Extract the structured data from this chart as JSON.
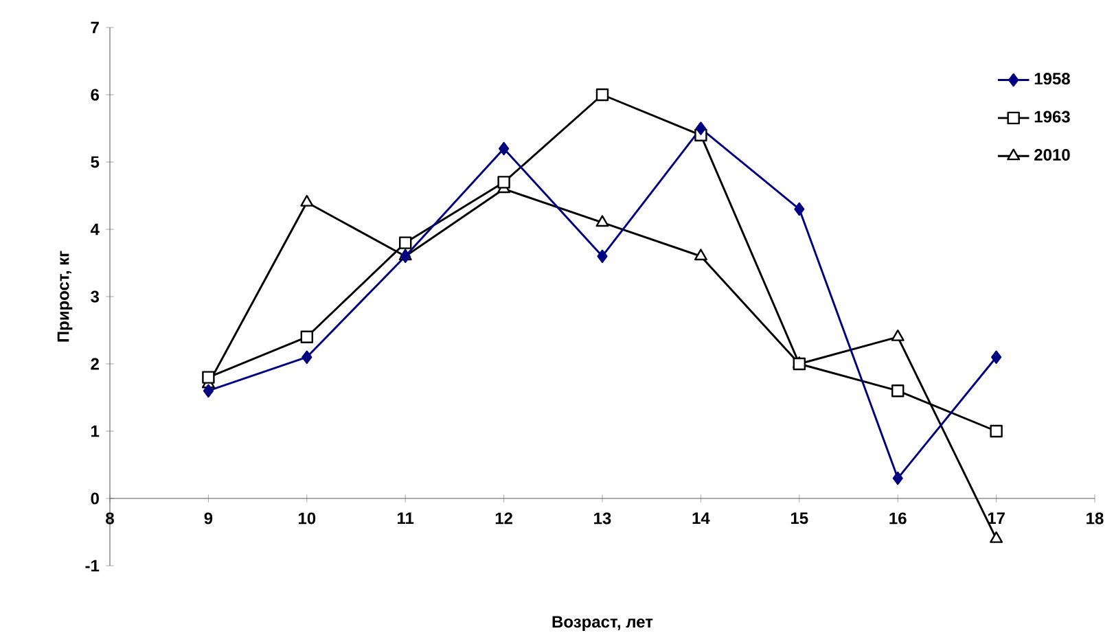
{
  "chart_data": {
    "type": "line",
    "xlabel": "Возраст, лет",
    "ylabel": "Прирост, кг",
    "x": [
      9,
      10,
      11,
      12,
      13,
      14,
      15,
      16,
      17
    ],
    "series": [
      {
        "name": "1958",
        "color": "#000080",
        "marker": "diamond",
        "values": [
          1.6,
          2.1,
          3.6,
          5.2,
          3.6,
          5.5,
          4.3,
          0.3,
          2.1
        ]
      },
      {
        "name": "1963",
        "color": "#000000",
        "marker": "square",
        "values": [
          1.8,
          2.4,
          3.8,
          4.7,
          6.0,
          5.4,
          2.0,
          1.6,
          1.0
        ]
      },
      {
        "name": "2010",
        "color": "#000000",
        "marker": "triangle",
        "values": [
          1.7,
          4.4,
          3.6,
          4.6,
          4.1,
          3.6,
          2.0,
          2.4,
          -0.6
        ]
      }
    ],
    "xlim": [
      8,
      18
    ],
    "xticks": [
      8,
      9,
      10,
      11,
      12,
      13,
      14,
      15,
      16,
      17,
      18
    ],
    "ylim": [
      -1,
      7
    ],
    "yticks": [
      -1,
      0,
      1,
      2,
      3,
      4,
      5,
      6,
      7
    ],
    "grid": false,
    "legend": "top right",
    "line_style": "solid"
  }
}
